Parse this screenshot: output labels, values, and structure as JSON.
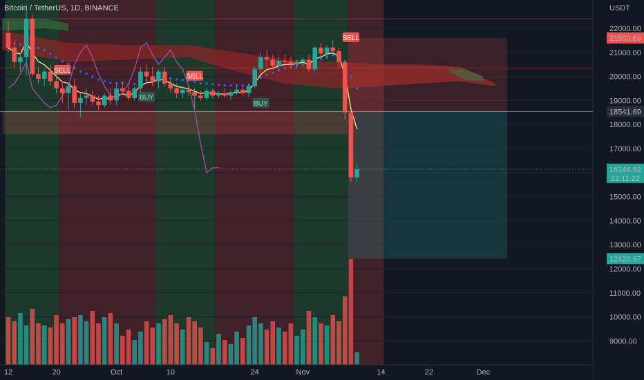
{
  "header": {
    "title": "Bitcoin / TetherUS, 1D, BINANCE",
    "currency": "USDT"
  },
  "colors": {
    "background": "#131722",
    "bull": "#26a69a",
    "bear": "#ef5350",
    "bull_zone": "#1f3d2e",
    "bear_zone": "#46212a",
    "cloud_red": "#8a2626",
    "cloud_green": "#2f5e37",
    "ema_blue": "#2962ff",
    "trend_yellow": "#f0e68c",
    "oscillator_purple": "#9c4f9e",
    "sell_tag": "#ef5350",
    "buy_tag": "#2e5e4e"
  },
  "chart_data": {
    "type": "candlestick",
    "symbol": "Bitcoin / TetherUS",
    "interval": "1D",
    "exchange": "BINANCE",
    "y_ticks": [
      22000,
      21000,
      20000,
      19000,
      18000,
      17000,
      16000,
      15000,
      14000,
      13000,
      12000,
      11000,
      10000,
      9000
    ],
    "y_tick_labels": [
      "22000.00",
      "21000.00",
      "20000.00",
      "19000.00",
      "18000.00",
      "17000.00",
      "16000.00",
      "15000.00",
      "14000.00",
      "13000.00",
      "12000.00",
      "11000.00",
      "10000.00",
      "9000.00"
    ],
    "ylim": [
      8000,
      23000
    ],
    "x_range_day": [
      -1,
      62
    ],
    "x_ticks": [
      {
        "label": "12",
        "day": 0
      },
      {
        "label": "20",
        "day": 8
      },
      {
        "label": "Oct",
        "day": 18
      },
      {
        "label": "10",
        "day": 27
      },
      {
        "label": "24",
        "day": 41
      },
      {
        "label": "Nov",
        "day": 49
      },
      {
        "label": "14",
        "day": 62
      },
      {
        "label": "22",
        "day": 70
      },
      {
        "label": "Dec",
        "day": 79
      }
    ],
    "x_tick_labels": [
      "12",
      "20",
      "Oct",
      "10",
      "24",
      "Nov",
      "14",
      "22",
      "Dec"
    ],
    "candles": [
      [
        21800,
        22300,
        21000,
        21200
      ],
      [
        21200,
        21500,
        20400,
        20600
      ],
      [
        20600,
        21000,
        20200,
        20800
      ],
      [
        20800,
        23000,
        20000,
        22400
      ],
      [
        22400,
        22600,
        20000,
        20100
      ],
      [
        20100,
        20400,
        19700,
        19900
      ],
      [
        19900,
        20300,
        19600,
        20200
      ],
      [
        20200,
        20500,
        19600,
        19800
      ],
      [
        19800,
        20100,
        19300,
        19500
      ],
      [
        19500,
        19800,
        18900,
        19300
      ],
      [
        19300,
        19700,
        18600,
        19600
      ],
      [
        19600,
        19900,
        18700,
        18900
      ],
      [
        18900,
        19300,
        18300,
        19100
      ],
      [
        19100,
        19500,
        18800,
        19200
      ],
      [
        19200,
        19400,
        18800,
        18950
      ],
      [
        18950,
        19200,
        18600,
        18800
      ],
      [
        18800,
        19300,
        18700,
        19200
      ],
      [
        19200,
        19500,
        18800,
        19000
      ],
      [
        19000,
        19700,
        18800,
        19500
      ],
      [
        19500,
        19800,
        19200,
        19400
      ],
      [
        19400,
        19600,
        19000,
        19100
      ],
      [
        19100,
        19600,
        19000,
        19500
      ],
      [
        19500,
        20400,
        19300,
        20200
      ],
      [
        20200,
        20500,
        19800,
        20000
      ],
      [
        20000,
        20400,
        19600,
        19800
      ],
      [
        19800,
        20300,
        19500,
        20200
      ],
      [
        20200,
        20400,
        19600,
        19700
      ],
      [
        19700,
        19900,
        19300,
        19500
      ],
      [
        19500,
        19700,
        19100,
        19300
      ],
      [
        19300,
        19600,
        19100,
        19450
      ],
      [
        19450,
        19600,
        19200,
        19350
      ],
      [
        19350,
        19500,
        18700,
        19200
      ],
      [
        19200,
        19400,
        19000,
        19100
      ],
      [
        19100,
        19500,
        19000,
        19400
      ],
      [
        19400,
        19500,
        19100,
        19200
      ],
      [
        19200,
        19400,
        19100,
        19300
      ],
      [
        19300,
        19500,
        19100,
        19200
      ],
      [
        19200,
        19400,
        19000,
        19350
      ],
      [
        19350,
        19600,
        19250,
        19450
      ],
      [
        19450,
        19600,
        19200,
        19300
      ],
      [
        19300,
        19700,
        19150,
        19600
      ],
      [
        19600,
        20400,
        19500,
        20300
      ],
      [
        20300,
        21000,
        20100,
        20800
      ],
      [
        20800,
        21100,
        20400,
        20700
      ],
      [
        20700,
        20900,
        20300,
        20450
      ],
      [
        20450,
        20800,
        20200,
        20650
      ],
      [
        20650,
        20900,
        20400,
        20600
      ],
      [
        20600,
        20800,
        20300,
        20500
      ],
      [
        20500,
        20700,
        20300,
        20600
      ],
      [
        20600,
        20800,
        20400,
        20700
      ],
      [
        20700,
        20900,
        20200,
        20300
      ],
      [
        20300,
        21300,
        20200,
        21200
      ],
      [
        21200,
        21400,
        20800,
        20950
      ],
      [
        20950,
        21300,
        20700,
        21200
      ],
      [
        21200,
        21500,
        20900,
        21050
      ],
      [
        21050,
        21200,
        20300,
        20600
      ],
      [
        20600,
        20700,
        18200,
        18500
      ],
      [
        18500,
        18600,
        15600,
        15800
      ],
      [
        15800,
        16400,
        15600,
        16145
      ]
    ],
    "volumes": [
      1.15,
      1.05,
      1.25,
      0.95,
      1.35,
      1.0,
      0.95,
      0.9,
      1.2,
      1.0,
      1.1,
      1.15,
      1.2,
      1.05,
      1.3,
      1.0,
      1.15,
      1.25,
      1.0,
      0.7,
      0.85,
      0.6,
      0.8,
      1.05,
      0.9,
      1.0,
      1.1,
      1.2,
      1.0,
      0.85,
      1.15,
      1.05,
      0.9,
      0.55,
      0.4,
      0.75,
      0.6,
      0.5,
      0.8,
      0.65,
      0.95,
      1.15,
      1.0,
      0.85,
      1.05,
      0.9,
      0.8,
      1.0,
      0.7,
      0.85,
      1.3,
      1.15,
      1.0,
      0.95,
      1.2,
      1.05,
      1.65,
      2.55,
      0.3
    ],
    "current_price": 16144.92,
    "labels": {
      "sell_target_price": "21600.69",
      "stop_price": "18541.69",
      "current_price": "16144.92",
      "countdown": "22:11:22",
      "take_profit_price": "12420.97"
    },
    "signals": [
      {
        "type": "SELL",
        "day": 9,
        "price": 20250
      },
      {
        "type": "BUY",
        "day": 23,
        "price": 19130
      },
      {
        "type": "SELL",
        "day": 31,
        "price": 20000
      },
      {
        "type": "BUY",
        "day": 42,
        "price": 18870
      },
      {
        "type": "SELL",
        "day": 57,
        "price": 21600
      }
    ],
    "hlines": [
      22400,
      20350,
      18541.69
    ],
    "short_position": {
      "start_day": 56.5,
      "end_day": 83,
      "entry": 18541.69,
      "stop": 21600.69,
      "target": 12420.97
    },
    "zone_boundaries_day": [
      -1,
      8,
      24,
      34,
      47,
      56,
      62
    ],
    "zones": [
      "bull",
      "bear",
      "bull",
      "bear",
      "bull",
      "bear"
    ]
  }
}
